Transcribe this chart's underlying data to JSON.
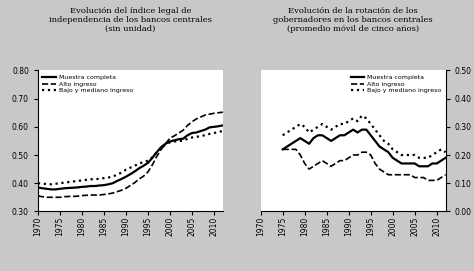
{
  "title1": "Evolución del índice legal de\nindependencia de los bancos centrales\n(sin unidad)",
  "title2": "Evolución de la rotación de los\ngobernadores en los bancos centrales\n(promedio móvil de cinco años)",
  "legend_labels": [
    "Muestra completa",
    "Alto ingreso",
    "Bajo y mediano ingreso"
  ],
  "fig_facecolor": "#c8c8c8",
  "panel1": {
    "years": [
      1970,
      1971,
      1972,
      1973,
      1974,
      1975,
      1976,
      1977,
      1978,
      1979,
      1980,
      1981,
      1982,
      1983,
      1984,
      1985,
      1986,
      1987,
      1988,
      1989,
      1990,
      1991,
      1992,
      1993,
      1994,
      1995,
      1996,
      1997,
      1998,
      1999,
      2000,
      2001,
      2002,
      2003,
      2004,
      2005,
      2006,
      2007,
      2008,
      2009,
      2010,
      2011,
      2012
    ],
    "muestra": [
      0.385,
      0.382,
      0.38,
      0.378,
      0.378,
      0.38,
      0.382,
      0.383,
      0.384,
      0.385,
      0.387,
      0.388,
      0.39,
      0.39,
      0.392,
      0.393,
      0.396,
      0.4,
      0.408,
      0.415,
      0.423,
      0.432,
      0.442,
      0.453,
      0.462,
      0.472,
      0.49,
      0.51,
      0.528,
      0.54,
      0.548,
      0.552,
      0.556,
      0.558,
      0.57,
      0.578,
      0.58,
      0.585,
      0.59,
      0.598,
      0.6,
      0.602,
      0.605
    ],
    "alto": [
      0.355,
      0.352,
      0.35,
      0.35,
      0.35,
      0.35,
      0.352,
      0.353,
      0.353,
      0.354,
      0.356,
      0.357,
      0.358,
      0.358,
      0.358,
      0.36,
      0.362,
      0.365,
      0.37,
      0.375,
      0.382,
      0.392,
      0.402,
      0.415,
      0.425,
      0.44,
      0.465,
      0.495,
      0.52,
      0.54,
      0.56,
      0.568,
      0.578,
      0.588,
      0.605,
      0.618,
      0.628,
      0.635,
      0.642,
      0.645,
      0.648,
      0.65,
      0.652
    ],
    "bajo": [
      0.4,
      0.398,
      0.397,
      0.396,
      0.398,
      0.4,
      0.402,
      0.404,
      0.406,
      0.408,
      0.41,
      0.412,
      0.414,
      0.414,
      0.416,
      0.418,
      0.42,
      0.424,
      0.43,
      0.438,
      0.448,
      0.455,
      0.462,
      0.47,
      0.475,
      0.48,
      0.492,
      0.51,
      0.525,
      0.538,
      0.545,
      0.548,
      0.55,
      0.55,
      0.558,
      0.562,
      0.564,
      0.568,
      0.57,
      0.575,
      0.578,
      0.582,
      0.585
    ],
    "ylim": [
      0.3,
      0.8
    ],
    "yticks": [
      0.3,
      0.4,
      0.5,
      0.6,
      0.7,
      0.8
    ],
    "xticks": [
      1970,
      1975,
      1980,
      1985,
      1990,
      1995,
      2000,
      2005,
      2010
    ],
    "xlim": [
      1970,
      2012
    ]
  },
  "panel2": {
    "years": [
      1975,
      1976,
      1977,
      1978,
      1979,
      1980,
      1981,
      1982,
      1983,
      1984,
      1985,
      1986,
      1987,
      1988,
      1989,
      1990,
      1991,
      1992,
      1993,
      1994,
      1995,
      1996,
      1997,
      1998,
      1999,
      2000,
      2001,
      2002,
      2003,
      2004,
      2005,
      2006,
      2007,
      2008,
      2009,
      2010,
      2011,
      2012
    ],
    "muestra": [
      0.22,
      0.23,
      0.24,
      0.25,
      0.26,
      0.25,
      0.24,
      0.26,
      0.27,
      0.27,
      0.26,
      0.25,
      0.26,
      0.27,
      0.27,
      0.28,
      0.29,
      0.28,
      0.29,
      0.29,
      0.27,
      0.25,
      0.23,
      0.22,
      0.21,
      0.19,
      0.18,
      0.17,
      0.17,
      0.17,
      0.17,
      0.16,
      0.16,
      0.16,
      0.17,
      0.17,
      0.18,
      0.19
    ],
    "alto": [
      0.22,
      0.22,
      0.22,
      0.22,
      0.2,
      0.17,
      0.15,
      0.16,
      0.17,
      0.18,
      0.17,
      0.16,
      0.17,
      0.18,
      0.18,
      0.19,
      0.2,
      0.2,
      0.21,
      0.21,
      0.2,
      0.17,
      0.15,
      0.14,
      0.13,
      0.13,
      0.13,
      0.13,
      0.13,
      0.13,
      0.12,
      0.12,
      0.12,
      0.11,
      0.11,
      0.11,
      0.12,
      0.13
    ],
    "bajo": [
      0.27,
      0.28,
      0.29,
      0.3,
      0.31,
      0.3,
      0.28,
      0.29,
      0.3,
      0.31,
      0.3,
      0.29,
      0.3,
      0.31,
      0.31,
      0.32,
      0.33,
      0.32,
      0.34,
      0.33,
      0.31,
      0.29,
      0.27,
      0.25,
      0.24,
      0.22,
      0.21,
      0.2,
      0.2,
      0.2,
      0.2,
      0.19,
      0.19,
      0.19,
      0.2,
      0.21,
      0.22,
      0.21
    ],
    "ylim": [
      0.0,
      0.5
    ],
    "yticks": [
      0.0,
      0.1,
      0.2,
      0.3,
      0.4,
      0.5
    ],
    "xticks": [
      1970,
      1975,
      1980,
      1985,
      1990,
      1995,
      2000,
      2005,
      2010
    ],
    "xlim": [
      1970,
      2012
    ]
  }
}
